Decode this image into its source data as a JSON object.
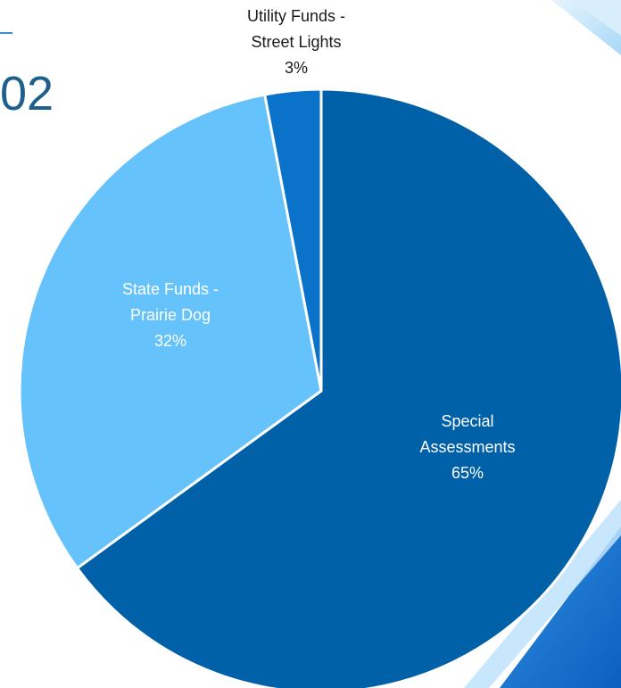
{
  "page": {
    "partial_title": "02"
  },
  "chart_data": {
    "type": "pie",
    "title": "",
    "slices": [
      {
        "label_lines": [
          "Special",
          "Assessments",
          "65%"
        ],
        "value": 65,
        "color": "#0060a8",
        "label_color": "#ffffff"
      },
      {
        "label_lines": [
          "State Funds -",
          "Prairie Dog",
          "32%"
        ],
        "value": 32,
        "color": "#66c2fa",
        "label_color": "#ffffff"
      },
      {
        "label_lines": [
          "Utility Funds -",
          "Street Lights",
          "3%"
        ],
        "value": 3,
        "color": "#0a73c9",
        "label_color": "#1a1a1a"
      }
    ],
    "colors": {
      "background": "#ffffff",
      "slice_border": "#ffffff",
      "accent_dark": "#1565c0",
      "accent_light": "#bfe3fb"
    }
  }
}
